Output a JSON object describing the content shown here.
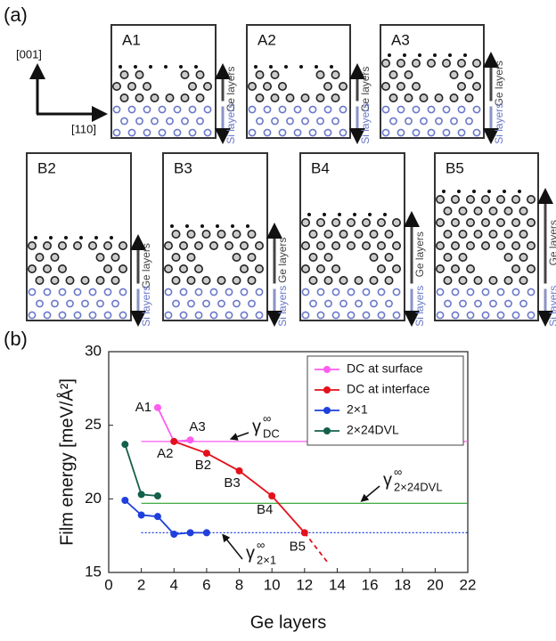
{
  "panels": {
    "a": "(a)",
    "b": "(b)"
  },
  "axes_diagram": {
    "up": "[001]",
    "right": "[110]"
  },
  "layer_labels": {
    "si": "Si layers",
    "ge": "Ge layers"
  },
  "structures": [
    {
      "label": "A1"
    },
    {
      "label": "A2"
    },
    {
      "label": "A3"
    },
    {
      "label": "B2"
    },
    {
      "label": "B3"
    },
    {
      "label": "B4"
    },
    {
      "label": "B5"
    }
  ],
  "chart_data": {
    "type": "line",
    "xlabel": "Ge layers",
    "ylabel": "Film energy [meV/Å²]",
    "xlim": [
      0,
      22
    ],
    "xticks": [
      0,
      2,
      4,
      6,
      8,
      10,
      12,
      14,
      16,
      18,
      20,
      22
    ],
    "ylim": [
      15,
      30
    ],
    "yticks": [
      15,
      20,
      25,
      30
    ],
    "legend": "upper right",
    "series": [
      {
        "name": "DC at surface",
        "color": "#ff5cf0",
        "x": [
          3,
          4,
          5
        ],
        "values": [
          26.2,
          23.9,
          24.0
        ],
        "point_labels": [
          "A1",
          "A2",
          "A3"
        ]
      },
      {
        "name": "DC at interface",
        "color": "#e3111b",
        "x": [
          4,
          6,
          8,
          10,
          12
        ],
        "values": [
          23.9,
          23.1,
          21.9,
          20.2,
          17.7
        ],
        "point_labels": [
          null,
          "B2",
          "B3",
          "B4",
          "B5"
        ]
      },
      {
        "name": "2×1",
        "color": "#1f3fdd",
        "x": [
          1,
          2,
          3,
          4,
          5,
          6
        ],
        "values": [
          19.9,
          18.9,
          18.8,
          17.6,
          17.7,
          17.7
        ]
      },
      {
        "name": "2×24DVL",
        "color": "#15604a",
        "x": [
          1,
          2,
          3
        ],
        "values": [
          23.7,
          20.3,
          20.2
        ]
      },
      {
        "color": "#e3111b",
        "dashed": true,
        "markers": false,
        "x": [
          12,
          13.4
        ],
        "values": [
          17.7,
          15.7
        ]
      }
    ],
    "reference_lines": [
      {
        "value": 23.9,
        "color": "#ff5cf0",
        "xlim": [
          2,
          22
        ],
        "label": {
          "text": "γ",
          "sup": "∞",
          "sub": "DC"
        }
      },
      {
        "value": 19.7,
        "color": "#2ca02c",
        "xlim": [
          2,
          22
        ],
        "label": {
          "text": "γ",
          "sup": "∞",
          "sub": "2×24DVL"
        }
      },
      {
        "value": 17.7,
        "color": "#1f3fdd",
        "dotted": true,
        "xlim": [
          2,
          22
        ],
        "label": {
          "text": "γ",
          "sup": "∞",
          "sub": "2×1"
        }
      }
    ]
  }
}
